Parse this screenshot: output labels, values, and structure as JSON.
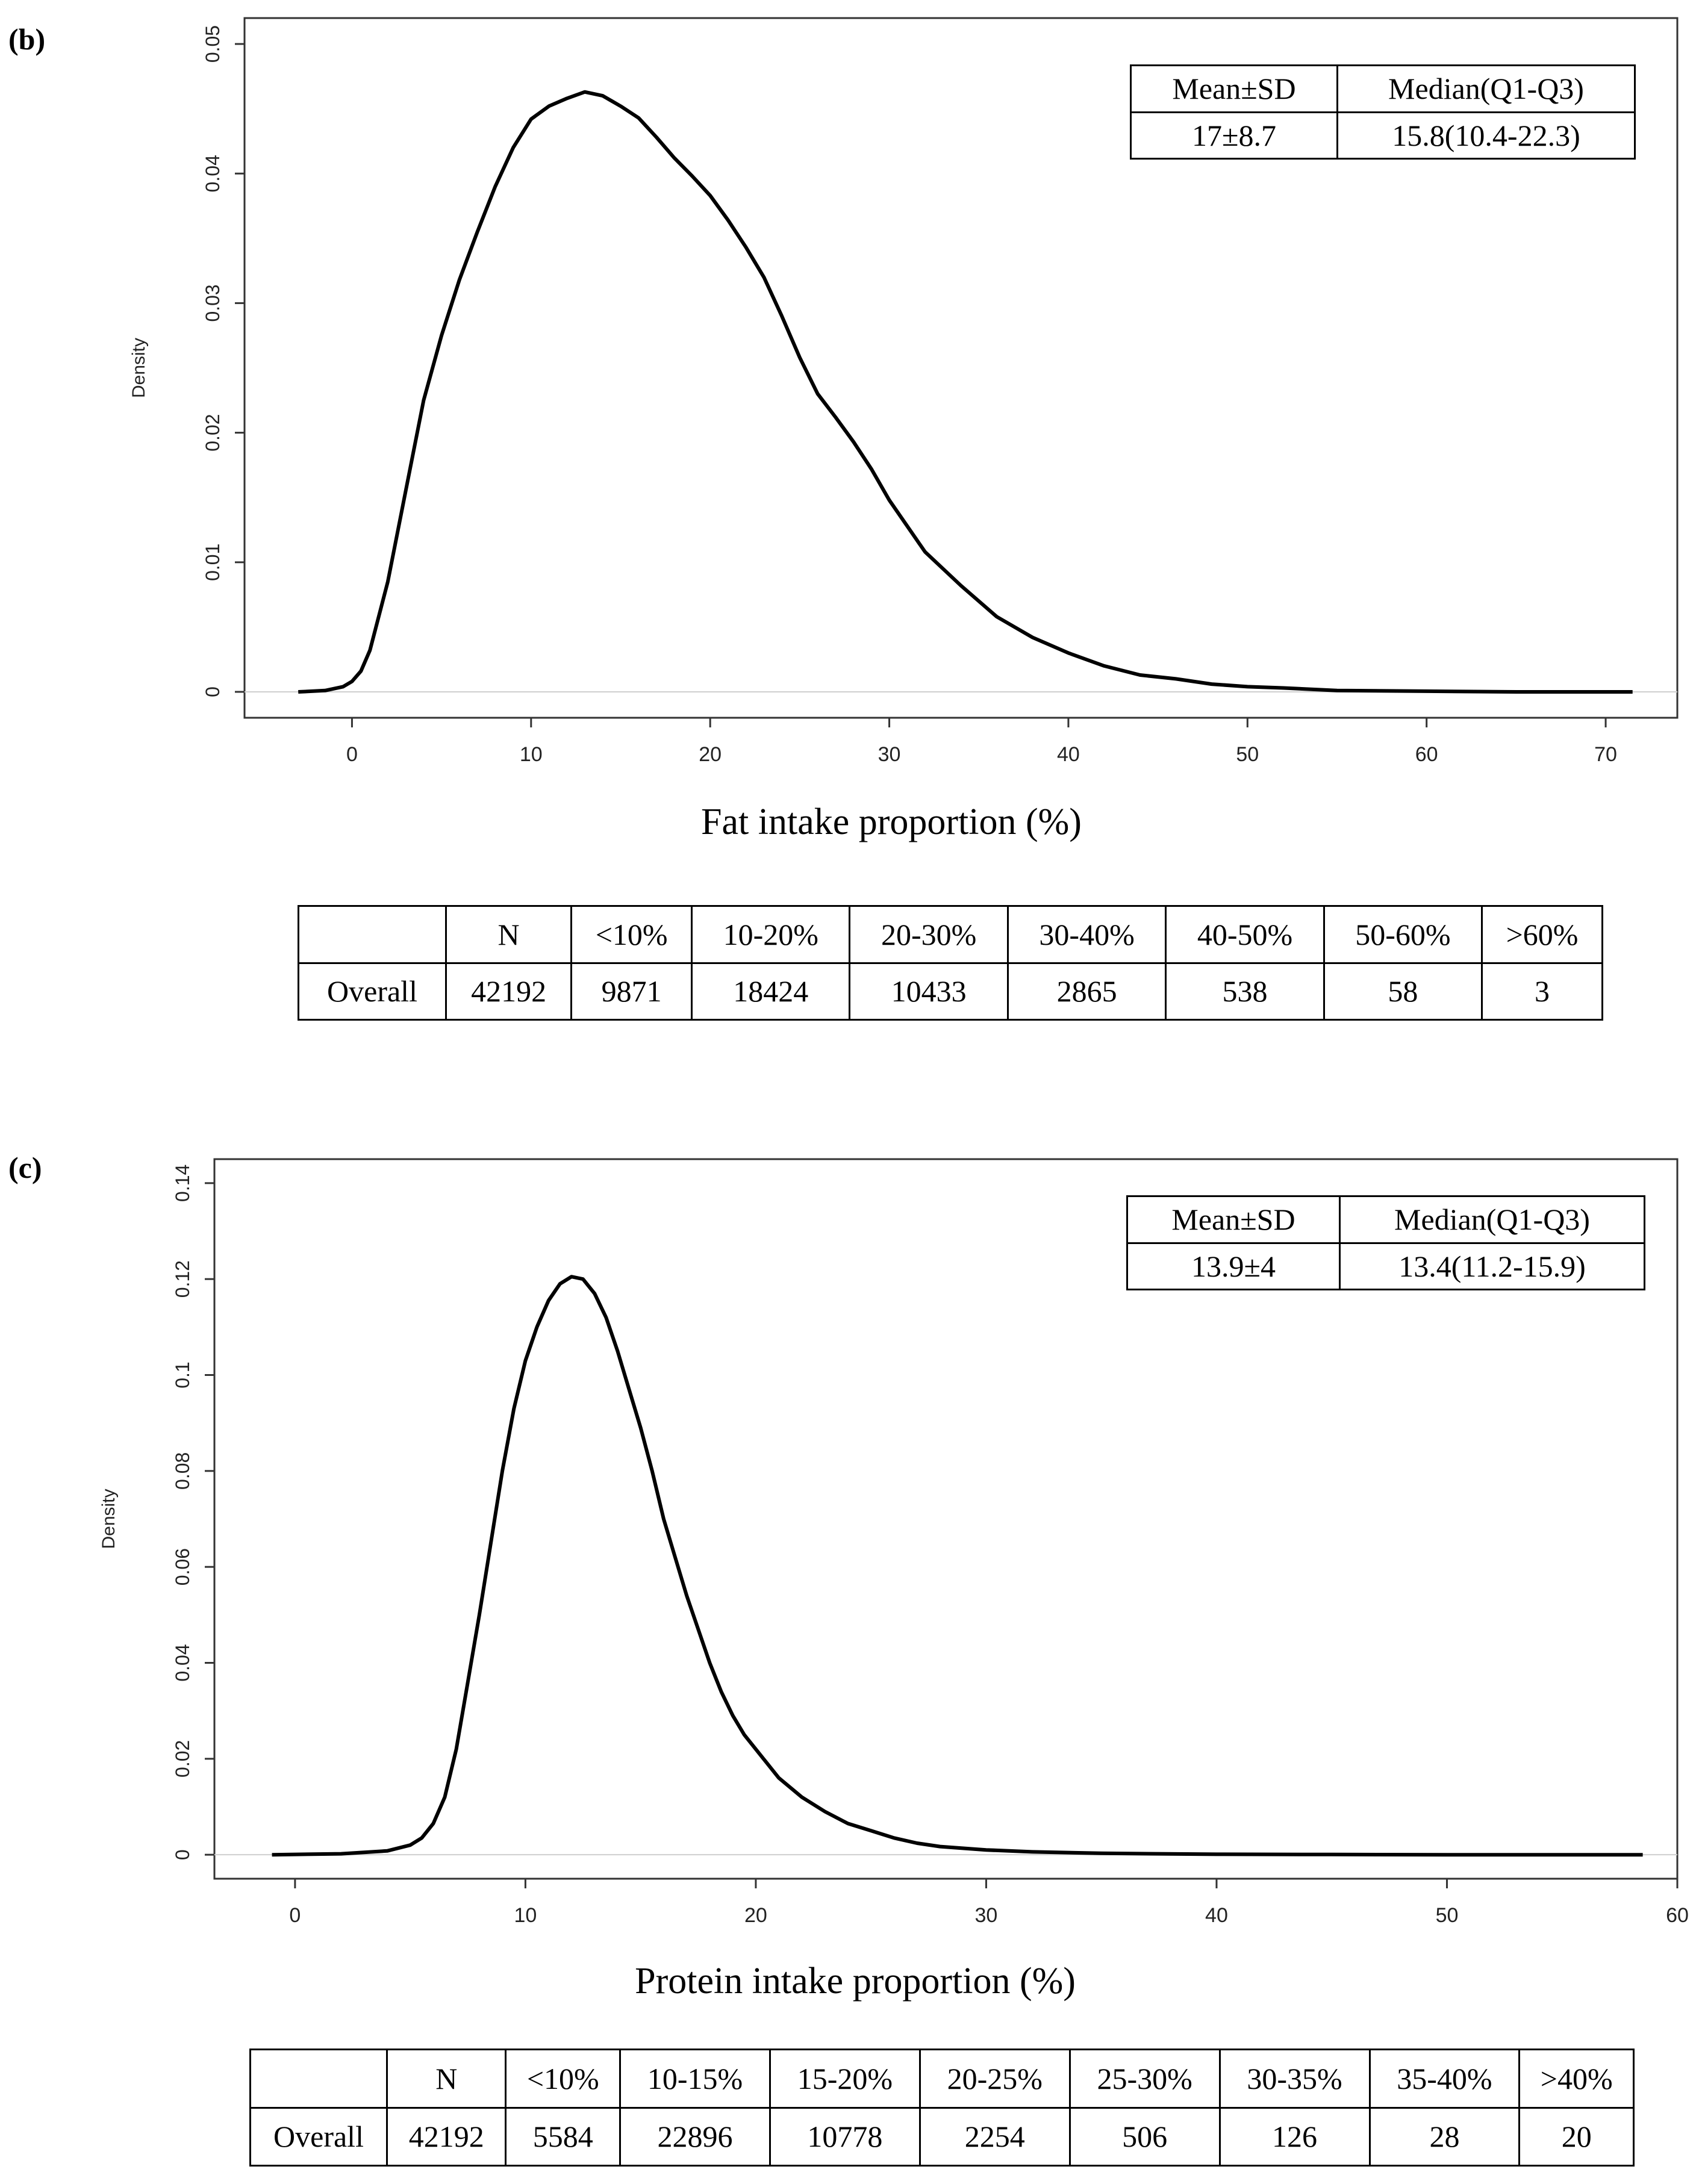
{
  "chart_data": [
    {
      "type": "line",
      "panel_label": "(b)",
      "xlabel": "Fat intake proportion (%)",
      "ylabel": "Density",
      "xlim": [
        -6,
        74
      ],
      "ylim": [
        -0.002,
        0.052
      ],
      "x_ticks": [
        0,
        10,
        20,
        30,
        40,
        50,
        60,
        70
      ],
      "y_ticks": [
        0,
        0.01,
        0.02,
        0.03,
        0.04,
        0.05
      ],
      "y_tick_labels": [
        "0",
        "0.01",
        "0.02",
        "0.03",
        "0.04",
        "0.05"
      ],
      "series": [
        {
          "name": "density",
          "x": [
            -3,
            -1.5,
            -0.5,
            0,
            0.5,
            1,
            2,
            3,
            4,
            5,
            6,
            7,
            8,
            9,
            10,
            11,
            12,
            13,
            14,
            15,
            16,
            17,
            18,
            19,
            20,
            21,
            22,
            23,
            24,
            25,
            26,
            27,
            28,
            29,
            30,
            32,
            34,
            36,
            38,
            40,
            42,
            44,
            46,
            48,
            50,
            52,
            55,
            60,
            65,
            71.5
          ],
          "y": [
            0,
            0.0001,
            0.0004,
            0.0008,
            0.0016,
            0.0032,
            0.0085,
            0.0155,
            0.0225,
            0.0275,
            0.0318,
            0.0355,
            0.039,
            0.042,
            0.0442,
            0.0452,
            0.0458,
            0.0463,
            0.046,
            0.0452,
            0.0443,
            0.0428,
            0.0412,
            0.0398,
            0.0383,
            0.0364,
            0.0343,
            0.032,
            0.029,
            0.0258,
            0.023,
            0.0212,
            0.0193,
            0.0172,
            0.0148,
            0.0108,
            0.0082,
            0.0058,
            0.0042,
            0.003,
            0.002,
            0.0013,
            0.001,
            0.0006,
            0.0004,
            0.0003,
            0.0001,
            5e-05,
            0,
            0
          ]
        }
      ],
      "stats_table": {
        "headers": [
          "Mean±SD",
          "Median(Q1-Q3)"
        ],
        "values": [
          "17±8.7",
          "15.8(10.4-22.3)"
        ]
      },
      "bins_table": {
        "headers": [
          "",
          "N",
          "<10%",
          "10-20%",
          "20-30%",
          "30-40%",
          "40-50%",
          "50-60%",
          ">60%"
        ],
        "row": [
          "Overall",
          "42192",
          "9871",
          "18424",
          "10433",
          "2865",
          "538",
          "58",
          "3"
        ]
      }
    },
    {
      "type": "line",
      "panel_label": "(c)",
      "xlabel": "Protein intake proportion (%)",
      "ylabel": "Density",
      "xlim": [
        -3.5,
        60
      ],
      "ylim": [
        -0.005,
        0.145
      ],
      "x_ticks": [
        0,
        10,
        20,
        30,
        40,
        50,
        60
      ],
      "y_ticks": [
        0,
        0.02,
        0.04,
        0.06,
        0.08,
        0.1,
        0.12,
        0.14
      ],
      "y_tick_labels": [
        "0",
        "0.02",
        "0.04",
        "0.06",
        "0.08",
        "0.1",
        "0.12",
        "0.14"
      ],
      "series": [
        {
          "name": "density",
          "x": [
            -1,
            2,
            4,
            5,
            5.5,
            6,
            6.5,
            7,
            7.5,
            8,
            8.5,
            9,
            9.5,
            10,
            10.5,
            11,
            11.5,
            12,
            12.5,
            13,
            13.5,
            14,
            14.5,
            15,
            15.5,
            16,
            16.5,
            17,
            17.5,
            18,
            18.5,
            19,
            19.5,
            20,
            21,
            22,
            23,
            24,
            25,
            26,
            27,
            28,
            30,
            32,
            35,
            40,
            45,
            50,
            58.5
          ],
          "y": [
            0,
            0.0002,
            0.0008,
            0.002,
            0.0035,
            0.0065,
            0.012,
            0.022,
            0.036,
            0.05,
            0.065,
            0.08,
            0.093,
            0.103,
            0.11,
            0.1155,
            0.119,
            0.1205,
            0.12,
            0.117,
            0.112,
            0.105,
            0.097,
            0.089,
            0.08,
            0.07,
            0.062,
            0.054,
            0.047,
            0.04,
            0.034,
            0.029,
            0.025,
            0.022,
            0.016,
            0.012,
            0.009,
            0.0065,
            0.005,
            0.0035,
            0.0024,
            0.0017,
            0.001,
            0.0006,
            0.0003,
            0.0001,
            5e-05,
            0,
            0
          ]
        }
      ],
      "stats_table": {
        "headers": [
          "Mean±SD",
          "Median(Q1-Q3)"
        ],
        "values": [
          "13.9±4",
          "13.4(11.2-15.9)"
        ]
      },
      "bins_table": {
        "headers": [
          "",
          "N",
          "<10%",
          "10-15%",
          "15-20%",
          "20-25%",
          "25-30%",
          "30-35%",
          "35-40%",
          ">40%"
        ],
        "row": [
          "Overall",
          "42192",
          "5584",
          "22896",
          "10778",
          "2254",
          "506",
          "126",
          "28",
          "20"
        ]
      }
    }
  ]
}
